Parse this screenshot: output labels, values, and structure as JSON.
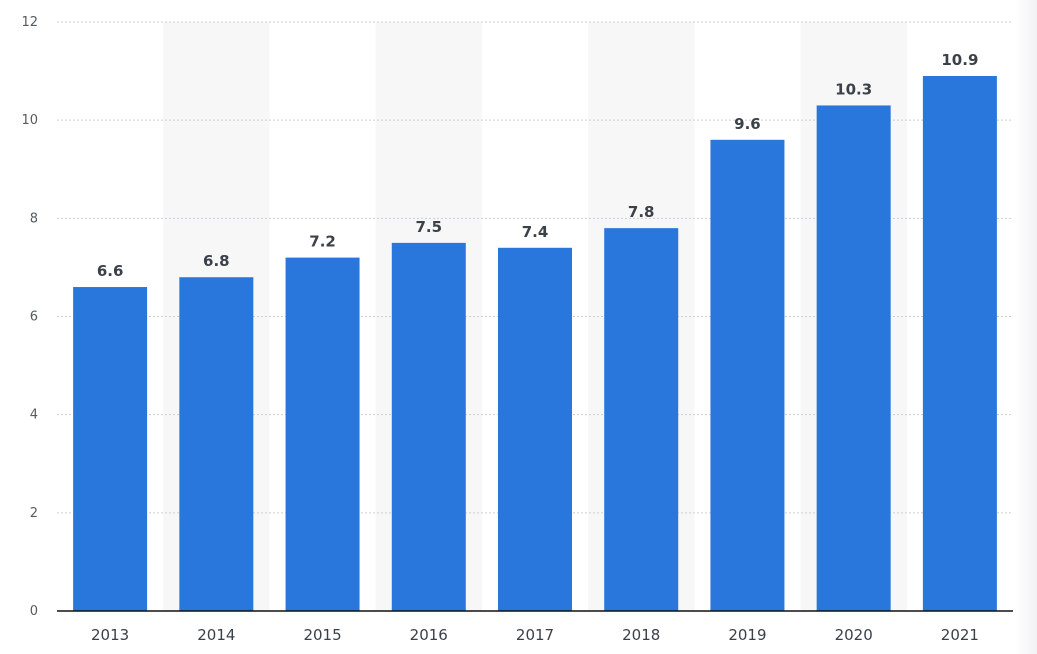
{
  "chart_data": {
    "type": "bar",
    "categories": [
      "2013",
      "2014",
      "2015",
      "2016",
      "2017",
      "2018",
      "2019",
      "2020",
      "2021"
    ],
    "values": [
      6.6,
      6.8,
      7.2,
      7.5,
      7.4,
      7.8,
      9.6,
      10.3,
      10.9
    ],
    "value_labels": [
      "6.6",
      "6.8",
      "7.2",
      "7.5",
      "7.4",
      "7.8",
      "9.6",
      "10.3",
      "10.9"
    ],
    "ylim": [
      0,
      12
    ],
    "yticks": [
      "0",
      "2",
      "4",
      "6",
      "8",
      "10",
      "12"
    ],
    "grid": true,
    "bar_color": "#2976dc",
    "band_color": "#f7f7f8"
  }
}
